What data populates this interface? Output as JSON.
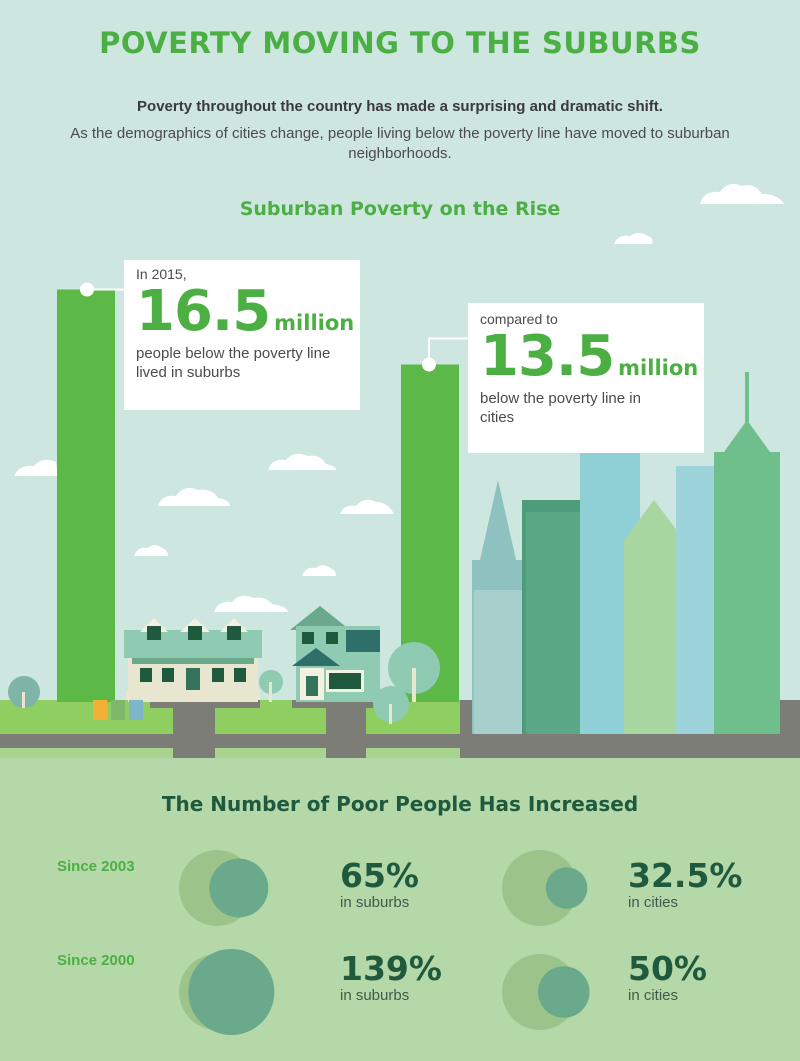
{
  "header": {
    "title": "POVERTY MOVING TO THE SUBURBS",
    "lead": "Poverty throughout the country has made a surprising and dramatic shift.",
    "intro": "As the demographics of cities change, people living below the poverty line have moved to suburban neighborhoods."
  },
  "section1": {
    "title": "Suburban Poverty on the Rise",
    "suburbs_callout": {
      "pre": "In 2015,",
      "value": "16.5",
      "unit": "million",
      "post": "people below the poverty line lived in suburbs"
    },
    "cities_callout": {
      "pre": "compared to",
      "value": "13.5",
      "unit": "million",
      "post": "below the poverty line in cities"
    }
  },
  "section2": {
    "title": "The Number of Poor People Has Increased",
    "rows": [
      {
        "since": "Since 2003",
        "suburbs": {
          "value": "65%",
          "label": "in suburbs"
        },
        "cities": {
          "value": "32.5%",
          "label": "in cities"
        }
      },
      {
        "since": "Since 2000",
        "suburbs": {
          "value": "139%",
          "label": "in suburbs"
        },
        "cities": {
          "value": "50%",
          "label": "in cities"
        }
      }
    ]
  },
  "colors": {
    "background": "#cde6df",
    "accent_green": "#4caf43",
    "dark_green": "#1f5a3e",
    "bottom_panel": "#b5d8a8",
    "teal_circle": "#6aa98c",
    "pale_circle": "#9cc48a"
  },
  "chart_data": [
    {
      "type": "bar",
      "title": "Suburban Poverty on the Rise",
      "categories": [
        "suburbs",
        "cities"
      ],
      "values": [
        16.5,
        13.5
      ],
      "ylabel": "million",
      "year": "2015"
    },
    {
      "type": "bar",
      "title": "The Number of Poor People Has Increased",
      "categories": [
        "Since 2003",
        "Since 2000"
      ],
      "series": [
        {
          "name": "in suburbs",
          "values": [
            65,
            139
          ]
        },
        {
          "name": "in cities",
          "values": [
            32.5,
            50
          ]
        }
      ],
      "ylabel": "%"
    }
  ]
}
